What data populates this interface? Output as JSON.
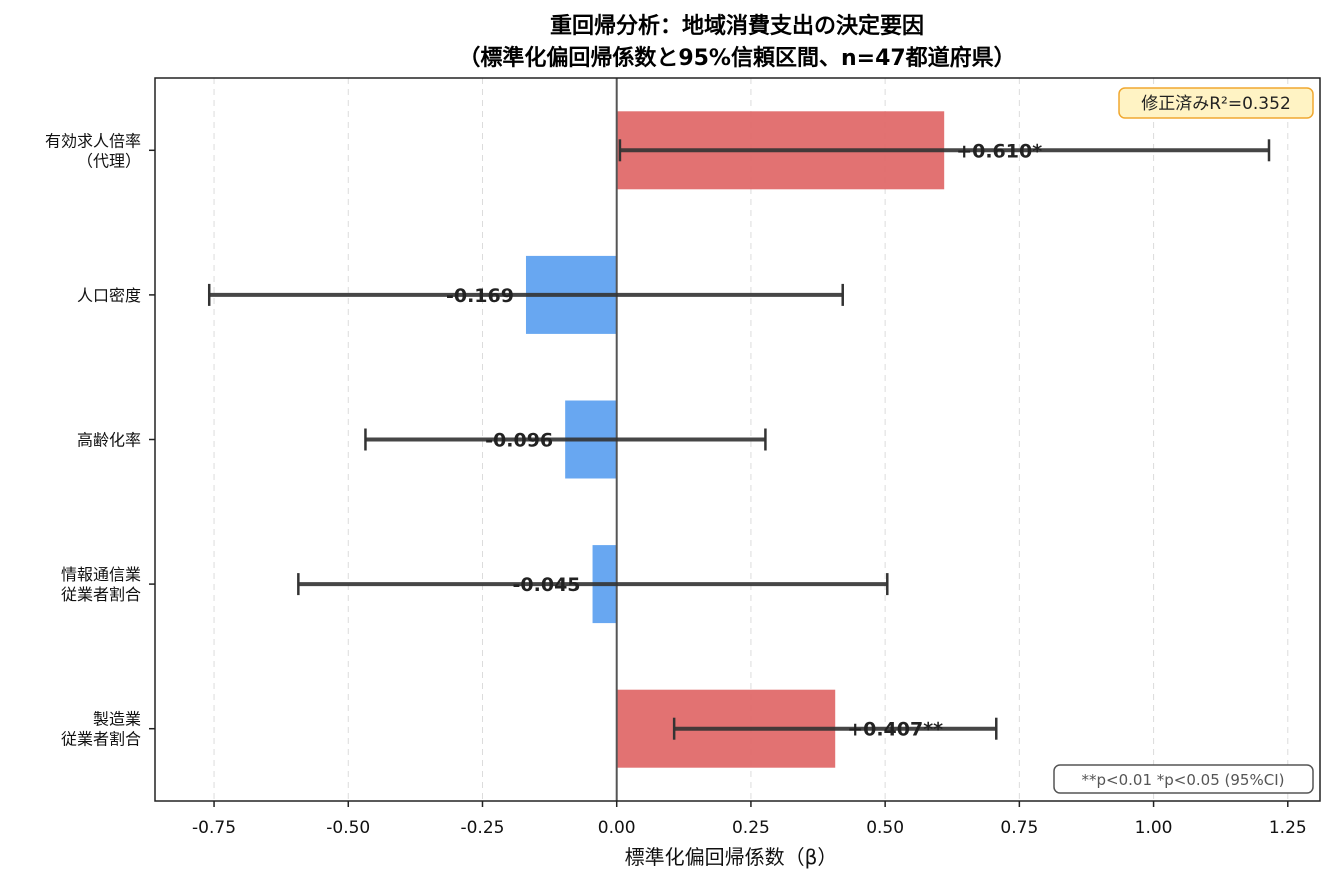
{
  "chart_data": {
    "type": "bar",
    "orientation": "horizontal",
    "title_line1": "重回帰分析：地域消費支出の決定要因",
    "title_line2": "（標準化偏回帰係数と95%信頼区間、n=47都道府県）",
    "xlabel": "標準化偏回帰係数（β）",
    "ylabel": "",
    "xlim": [
      -0.86,
      1.31
    ],
    "xticks": [
      -0.75,
      -0.5,
      -0.25,
      0.0,
      0.25,
      0.5,
      0.75,
      1.0,
      1.25
    ],
    "xtick_labels": [
      "-0.75",
      "-0.50",
      "-0.25",
      "0.00",
      "0.25",
      "0.50",
      "0.75",
      "1.00",
      "1.25"
    ],
    "grid": "vertical-dashed",
    "categories": [
      {
        "lines": [
          "有効求人倍率",
          "（代理）"
        ],
        "value": 0.61,
        "ci": [
          0.006,
          1.215
        ],
        "label": "+0.610*",
        "color": "#e06666"
      },
      {
        "lines": [
          "人口密度"
        ],
        "value": -0.169,
        "ci": [
          -0.759,
          0.421
        ],
        "label": "-0.169",
        "color": "#5b9ff0"
      },
      {
        "lines": [
          "高齢化率"
        ],
        "value": -0.096,
        "ci": [
          -0.468,
          0.277
        ],
        "label": "-0.096",
        "color": "#5b9ff0"
      },
      {
        "lines": [
          "情報通信業",
          "従業者割合"
        ],
        "value": -0.045,
        "ci": [
          -0.593,
          0.504
        ],
        "label": "-0.045",
        "color": "#5b9ff0"
      },
      {
        "lines": [
          "製造業",
          "従業者割合"
        ],
        "value": 0.407,
        "ci": [
          0.107,
          0.707
        ],
        "label": "+0.407**",
        "color": "#e06666"
      }
    ],
    "annotation_top_right": "修正済みR²=0.352",
    "legend_bottom_right": "**p<0.01  *p<0.05  (95%CI)"
  }
}
